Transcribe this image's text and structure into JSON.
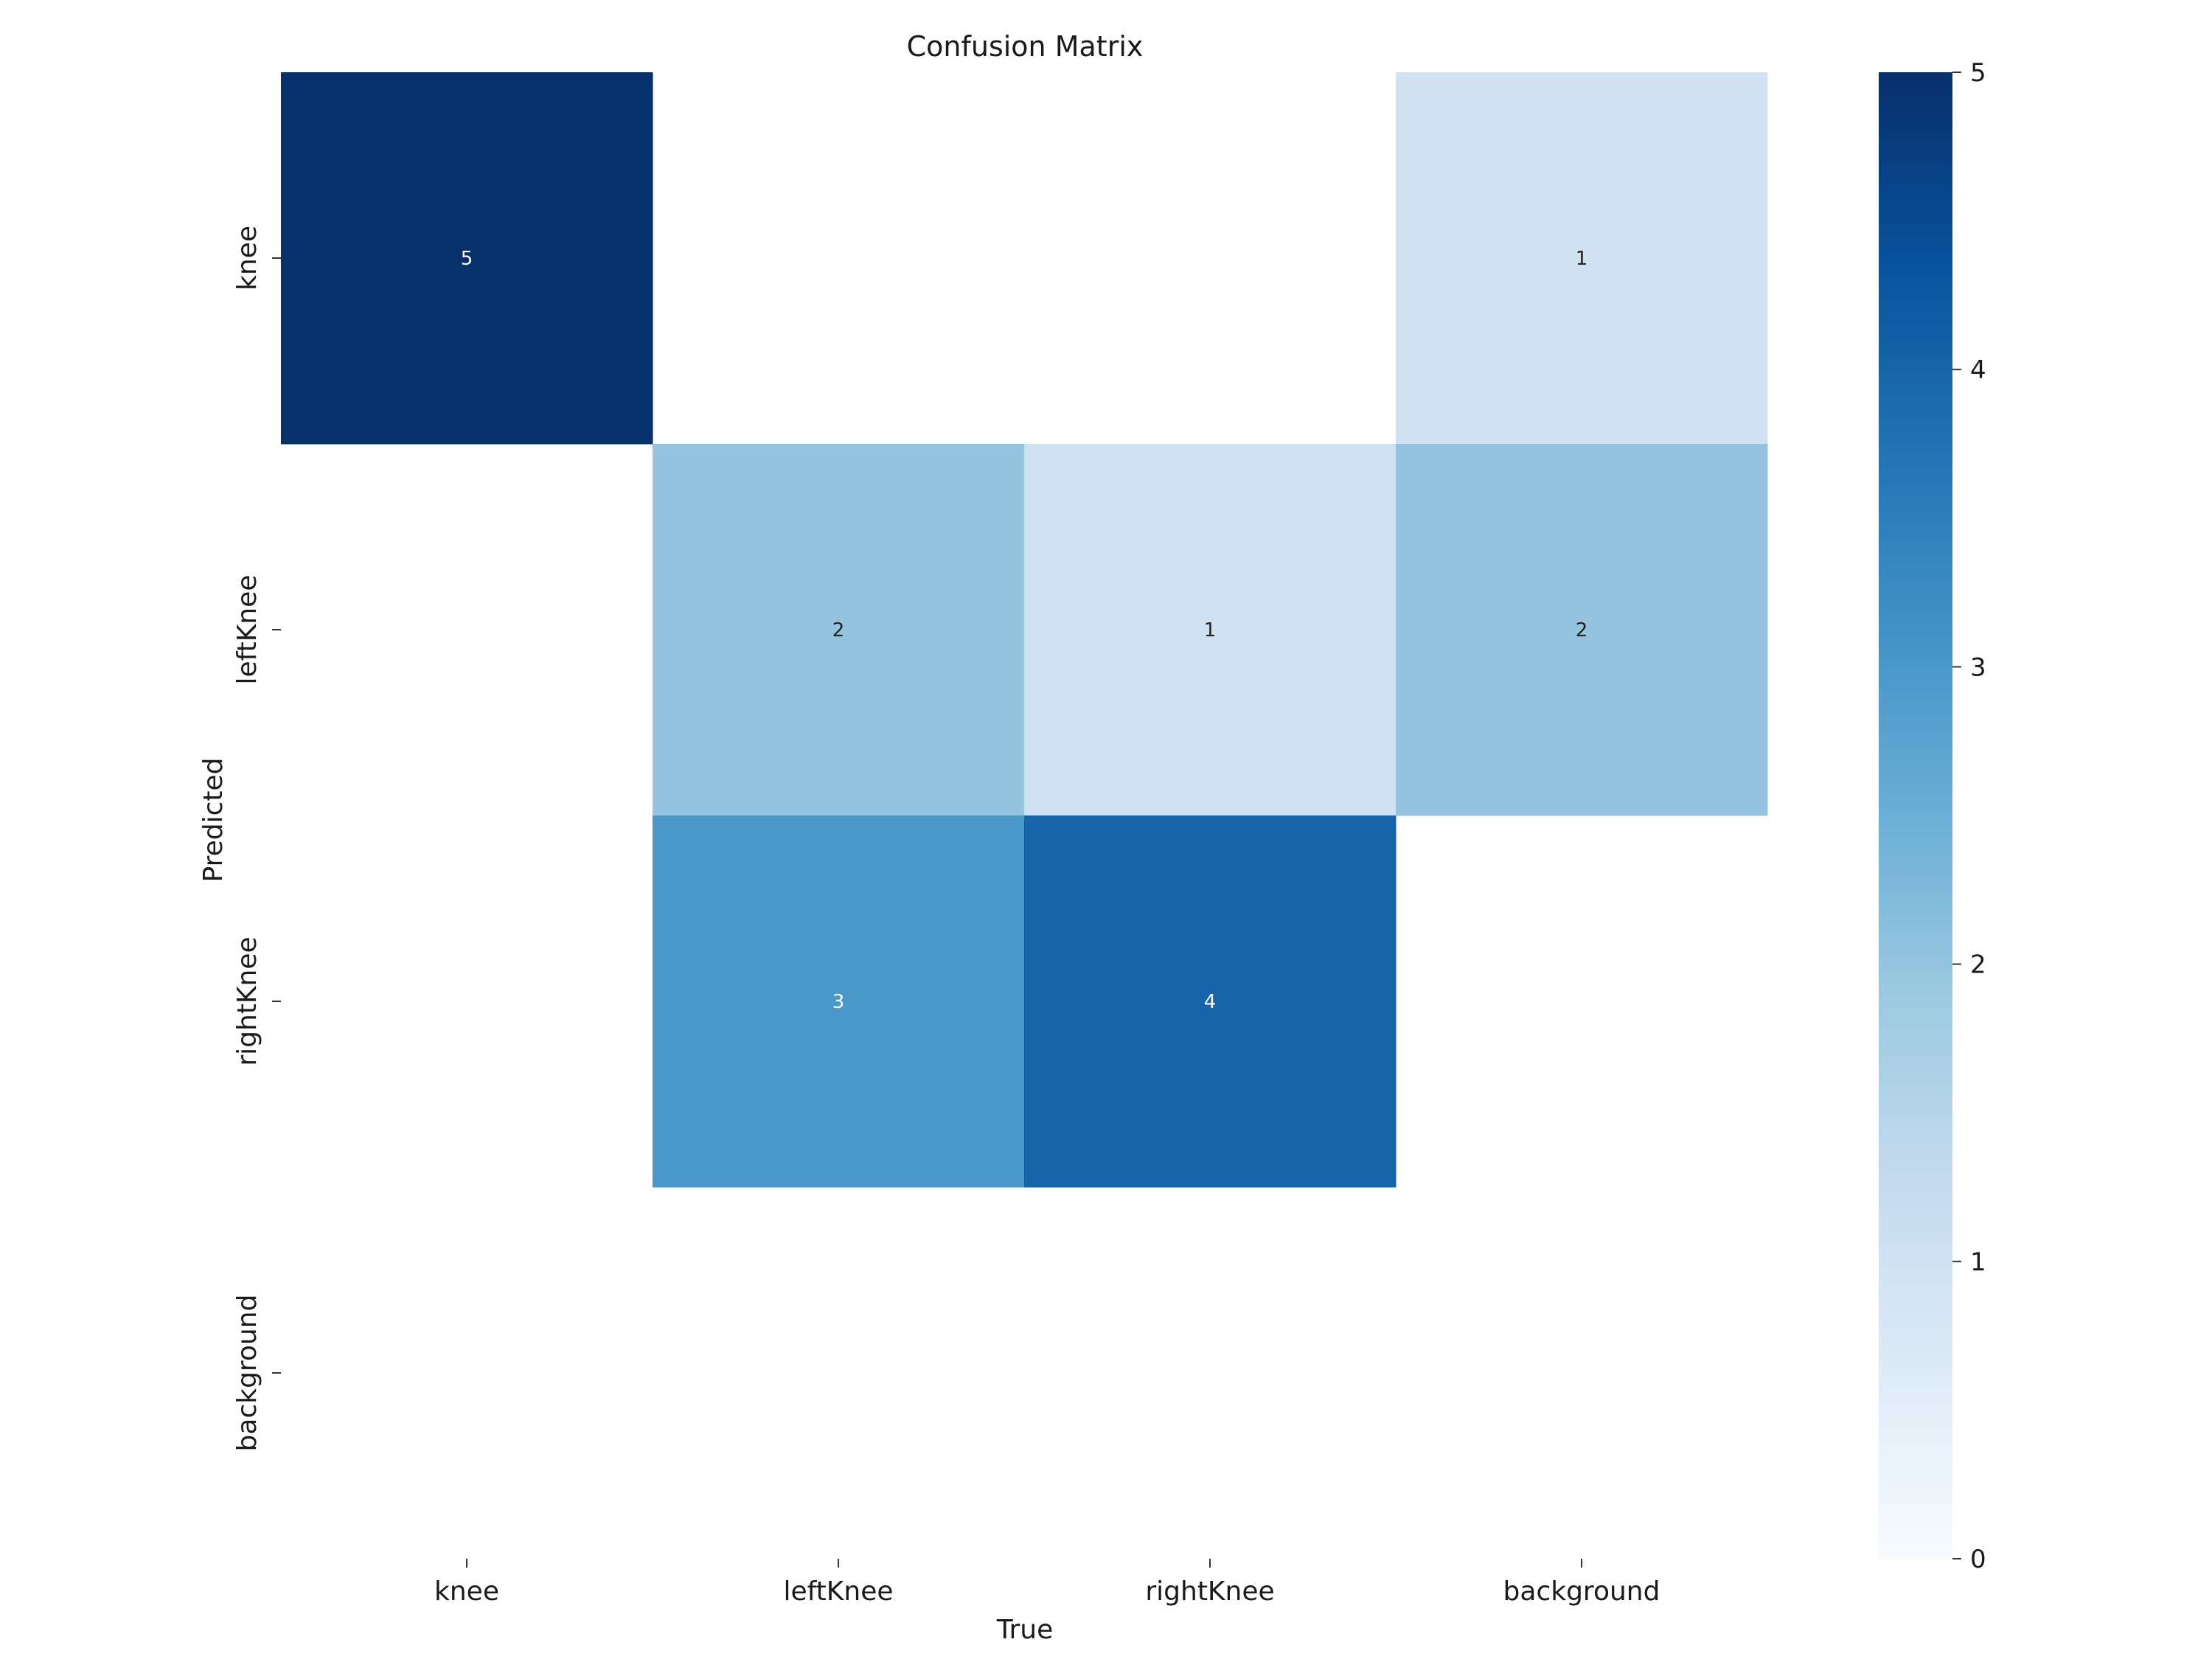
{
  "chart_data": {
    "type": "heatmap",
    "title": "Confusion Matrix",
    "xlabel": "True",
    "ylabel": "Predicted",
    "x_categories": [
      "knee",
      "leftKnee",
      "rightKnee",
      "background"
    ],
    "y_categories": [
      "knee",
      "leftKnee",
      "rightKnee",
      "background"
    ],
    "matrix": [
      [
        5,
        0,
        0,
        1
      ],
      [
        0,
        2,
        1,
        2
      ],
      [
        0,
        3,
        4,
        0
      ],
      [
        0,
        0,
        0,
        0
      ]
    ],
    "zero_cells_blank": true,
    "colorbar": {
      "min": 0,
      "max": 5,
      "ticks": [
        0,
        1,
        2,
        3,
        4,
        5
      ],
      "colormap": "Blues",
      "colors": [
        "#f7fbff",
        "#deebf7",
        "#c6dbef",
        "#9ecae1",
        "#6baed6",
        "#4292c6",
        "#2171b5",
        "#08519c",
        "#08306b"
      ]
    }
  }
}
